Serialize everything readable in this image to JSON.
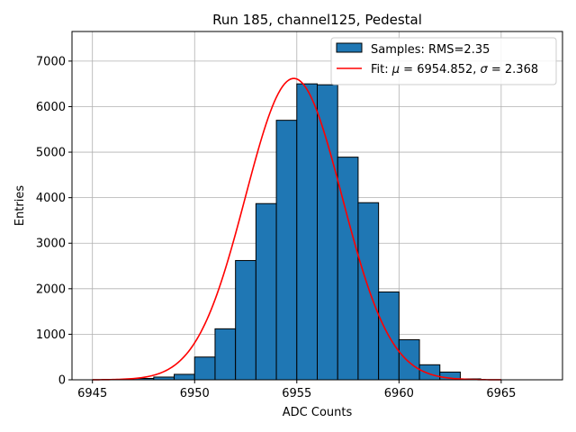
{
  "chart_data": {
    "type": "bar",
    "title": "Run 185, channel125, Pedestal",
    "xlabel": "ADC Counts",
    "ylabel": "Entries",
    "xlim": [
      6944.0,
      6968.0
    ],
    "ylim": [
      0,
      7650
    ],
    "xticks": [
      6945,
      6950,
      6955,
      6960,
      6965
    ],
    "yticks": [
      0,
      1000,
      2000,
      3000,
      4000,
      5000,
      6000,
      7000
    ],
    "grid": true,
    "legend_position": "top-right",
    "histogram": {
      "name": "Samples: RMS=2.35",
      "color": "#1f77b4",
      "edgecolor": "#000000",
      "bin_width": 1,
      "bin_left_edges": [
        6946,
        6947,
        6948,
        6949,
        6950,
        6951,
        6952,
        6953,
        6954,
        6955,
        6956,
        6957,
        6958,
        6959,
        6960,
        6961,
        6962,
        6963
      ],
      "values": [
        5,
        30,
        60,
        120,
        500,
        1120,
        2620,
        3870,
        5700,
        6500,
        6480,
        4890,
        3890,
        1930,
        880,
        330,
        170,
        20
      ]
    },
    "fit": {
      "name": "Fit: μ = 6954.852, σ = 2.368",
      "label_parts": [
        "Fit: ",
        "μ",
        " = 6954.852, ",
        "σ",
        " = 2.368"
      ],
      "color": "#ff0000",
      "mu": 6954.852,
      "sigma": 2.368,
      "amplitude": 6620,
      "x_range": [
        6945,
        6965
      ]
    }
  }
}
